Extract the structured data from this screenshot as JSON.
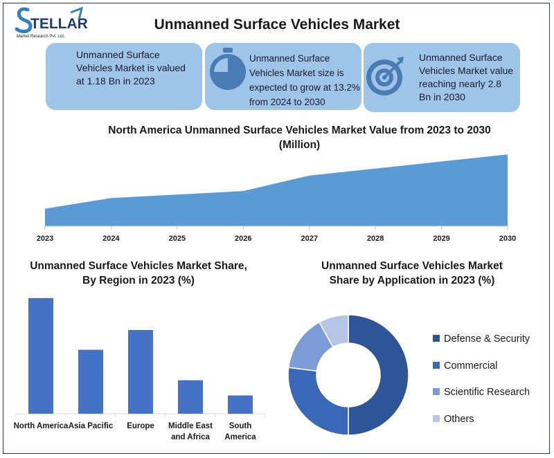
{
  "logo": {
    "brand": "STELLAR",
    "tagline": "Market Research Pvt. Ltd."
  },
  "title": "Unmanned Surface Vehicles Market",
  "cards": [
    {
      "text": "Unmanned Surface Vehicles Market is valued at 1.18 Bn in 2023",
      "icon": "none"
    },
    {
      "text": "Unmanned Surface Vehicles Market size is expected to grow at 13.2% from 2024 to 2030",
      "icon": "stopwatch-icon"
    },
    {
      "text": "Unmanned Surface Vehicles Market value reaching nearly 2.8 Bn in 2030",
      "icon": "target-icon"
    }
  ],
  "colors": {
    "area": "#5b9bd5",
    "bar": "#4472c4",
    "card": "#9ec5e8",
    "frame": "#1f3864"
  },
  "chart_data": [
    {
      "type": "area",
      "title": "North America Unmanned Surface Vehicles Market Value from 2023 to 2030 (Million)",
      "x": [
        "2023",
        "2024",
        "2025",
        "2026",
        "2027",
        "2028",
        "2029",
        "2030"
      ],
      "values": [
        25,
        40,
        45,
        50,
        72,
        82,
        92,
        102
      ],
      "ylim": [
        0,
        115
      ],
      "grid": false
    },
    {
      "type": "bar",
      "title": "Unmanned Surface Vehicles Market Share, By Region in 2023 (%)",
      "categories": [
        "North America",
        "Asia Pacific",
        "Europe",
        "Middle East and Africa",
        "South America"
      ],
      "values": [
        38,
        21,
        27.5,
        11,
        6
      ],
      "ylim": [
        0,
        40
      ]
    },
    {
      "type": "pie",
      "title": "Unmanned Surface Vehicles Market Share by Application in 2023 (%)",
      "labels": [
        "Defense & Security",
        "Commercial",
        "Scientific Research",
        "Others"
      ],
      "values": [
        50,
        27,
        15,
        8
      ],
      "colors": [
        "#2e5597",
        "#3a67b8",
        "#7d9bd6",
        "#b6c5e6"
      ],
      "legend": "right"
    }
  ]
}
